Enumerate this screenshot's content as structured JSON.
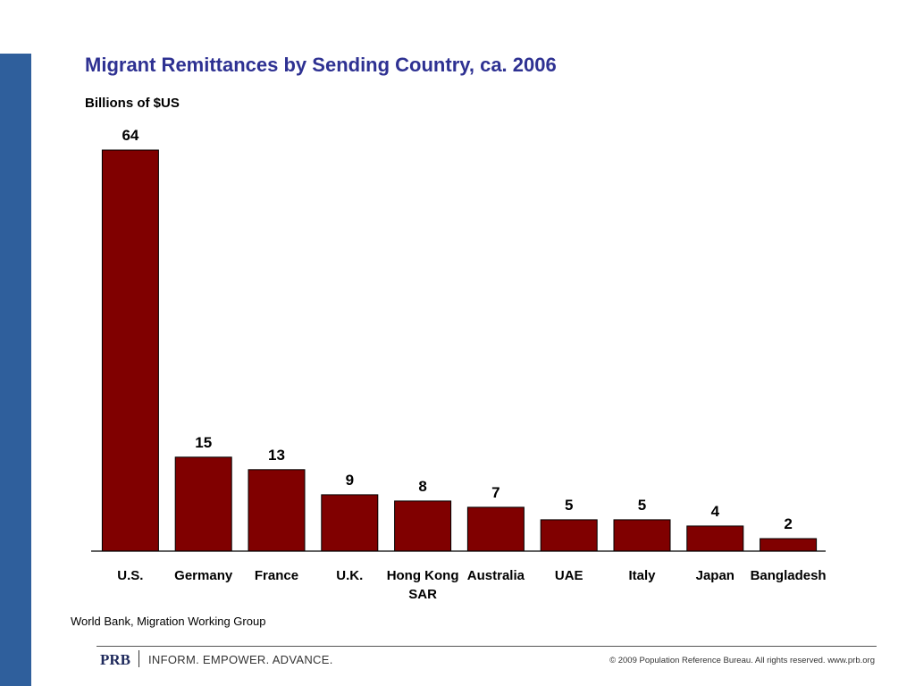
{
  "slide": {
    "title": "Migrant Remittances by Sending Country, ca. 2006",
    "unit_label": "Billions of $US",
    "source": "World Bank, Migration Working Group"
  },
  "footer": {
    "logo": "PRB",
    "tagline": "INFORM. EMPOWER. ADVANCE.",
    "copyright": "© 2009 Population Reference Bureau. All rights reserved. www.prb.org"
  },
  "colors": {
    "bar": "#800000",
    "title": "#2e3192",
    "sidebar": "#2f5f9c"
  },
  "chart_data": {
    "type": "bar",
    "title": "Migrant Remittances by Sending Country, ca. 2006",
    "ylabel": "Billions of $US",
    "xlabel": "",
    "categories": [
      "U.S.",
      "Germany",
      "France",
      "U.K.",
      "Hong Kong SAR",
      "Australia",
      "UAE",
      "Italy",
      "Japan",
      "Bangladesh"
    ],
    "category_lines": [
      [
        "U.S."
      ],
      [
        "Germany"
      ],
      [
        "France"
      ],
      [
        "U.K."
      ],
      [
        "Hong Kong",
        "SAR"
      ],
      [
        "Australia"
      ],
      [
        "UAE"
      ],
      [
        "Italy"
      ],
      [
        "Japan"
      ],
      [
        "Bangladesh"
      ]
    ],
    "values": [
      64,
      15,
      13,
      9,
      8,
      7,
      5,
      5,
      4,
      2
    ],
    "data_labels": [
      "64",
      "15",
      "13",
      "9",
      "8",
      "7",
      "5",
      "5",
      "4",
      "2"
    ],
    "ylim": [
      0,
      64
    ],
    "grid": false,
    "legend": "none"
  }
}
